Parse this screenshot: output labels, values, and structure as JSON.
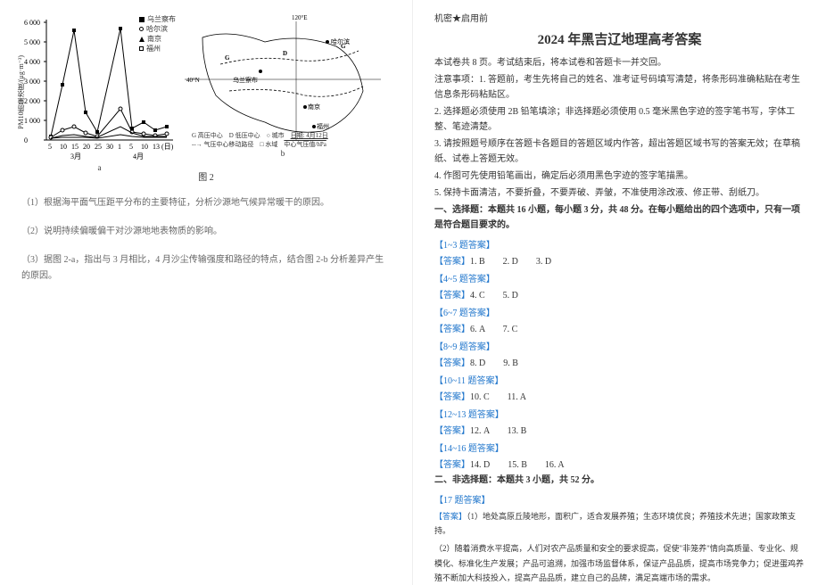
{
  "left": {
    "chart_a": {
      "type": "line",
      "y_label": "PM10质量浓度/(μg·m⁻³)",
      "x_ticks": [
        "5",
        "10",
        "15",
        "20",
        "25",
        "30",
        "1",
        "5",
        "10",
        "13"
      ],
      "x_month_labels": [
        "3月",
        "4月"
      ],
      "y_ticks": [
        "0",
        "1000",
        "2000",
        "3000",
        "4000",
        "5000",
        "6000"
      ],
      "ylim": [
        0,
        6000
      ],
      "legend": [
        {
          "marker": "sq-fill",
          "label": "乌兰察布"
        },
        {
          "marker": "circ",
          "label": "哈尔滨"
        },
        {
          "marker": "tri",
          "label": "南京"
        },
        {
          "marker": "sq-open",
          "label": "福州"
        }
      ],
      "series": {
        "wulan": [
          [
            1,
            200
          ],
          [
            2,
            2800
          ],
          [
            3,
            5600
          ],
          [
            4,
            1400
          ],
          [
            5,
            400
          ],
          [
            6,
            5700
          ],
          [
            7,
            600
          ],
          [
            8,
            900
          ],
          [
            9,
            500
          ],
          [
            10,
            700
          ]
        ],
        "harbin": [
          [
            1,
            150
          ],
          [
            2,
            500
          ],
          [
            3,
            700
          ],
          [
            4,
            350
          ],
          [
            5,
            200
          ],
          [
            6,
            1600
          ],
          [
            7,
            400
          ],
          [
            8,
            300
          ],
          [
            9,
            250
          ],
          [
            10,
            300
          ]
        ],
        "nanjing": [
          [
            1,
            120
          ],
          [
            2,
            250
          ],
          [
            3,
            300
          ],
          [
            4,
            200
          ],
          [
            5,
            150
          ],
          [
            6,
            700
          ],
          [
            7,
            350
          ],
          [
            8,
            200
          ],
          [
            9,
            180
          ],
          [
            10,
            200
          ]
        ],
        "fuzhou": [
          [
            1,
            100
          ],
          [
            2,
            150
          ],
          [
            3,
            180
          ],
          [
            4,
            140
          ],
          [
            5,
            130
          ],
          [
            6,
            300
          ],
          [
            7,
            200
          ],
          [
            8,
            150
          ],
          [
            9,
            140
          ],
          [
            10,
            150
          ]
        ]
      },
      "sub_label": "a"
    },
    "chart_b": {
      "type": "map",
      "lon_label": "120°E",
      "lat_label": "40°N",
      "cities": [
        "哈尔滨",
        "乌兰察布",
        "南京",
        "福州"
      ],
      "legend": [
        {
          "sym": "G",
          "label": "高压中心"
        },
        {
          "sym": "D",
          "label": "低压中心"
        },
        {
          "sym": "arrow",
          "label": "气压中心移动路径"
        },
        {
          "sym": "dot",
          "label": "城市"
        },
        {
          "sym": "sq",
          "label": "水域"
        },
        {
          "sym": "date",
          "label": "日期: 4月12日"
        },
        {
          "sym": "iso",
          "label": "中心气压值/hPa"
        }
      ],
      "sub_label": "b"
    },
    "caption": "图 2",
    "q1": "（1）根据海平面气压距平分布的主要特征，分析沙源地气候异常暖干的原因。",
    "q2": "（2）说明持续偏暖偏干对沙源地地表物质的影响。",
    "q3": "（3）据图 2-a，指出与 3 月相比，4 月沙尘传输强度和路径的特点，结合图 2-b 分析差异产生的原因。"
  },
  "right": {
    "secret": "机密★启用前",
    "title": "2024 年黑吉辽地理高考答案",
    "intro1": "本试卷共 8 页。考试结束后，将本试卷和答题卡一并交回。",
    "intro2": "注意事项：1.  答题前，考生先将自己的姓名、准考证号码填写清楚，将条形码准确粘贴在考生信息条形码粘贴区。",
    "intro3": "2.  选择题必须使用 2B 铅笔填涂；非选择题必须使用 0.5 毫米黑色字迹的签字笔书写，字体工整、笔迹清楚。",
    "intro4": "3.  请按照题号顺序在答题卡各题目的答题区域内作答，超出答题区域书写的答案无效；在草稿纸、试卷上答题无效。",
    "intro5": "4.  作图可先使用铅笔画出，确定后必须用黑色字迹的签字笔描黑。",
    "intro6": "5.  保持卡面清洁，不要折叠，不要弄破、弄皱，不准使用涂改液、修正带、刮纸刀。",
    "sec1": "一、选择题：本题共 16 小题，每小题 3 分，共 48 分。在每小题给出的四个选项中，只有一项是符合题目要求的。",
    "groups": [
      {
        "h": "【1~3 题答案】",
        "a": "【答案】1. B　　2. D　　3. D"
      },
      {
        "h": "【4~5 题答案】",
        "a": "【答案】4. C　　5. D"
      },
      {
        "h": "【6~7 题答案】",
        "a": "【答案】6. A　　7. C"
      },
      {
        "h": "【8~9 题答案】",
        "a": "【答案】8. D　　9. B"
      },
      {
        "h": "【10~11 题答案】",
        "a": "【答案】10. C　　11. A"
      },
      {
        "h": "【12~13 题答案】",
        "a": "【答案】12. A　　13. B"
      },
      {
        "h": "【14~16 题答案】",
        "a": "【答案】14. D　　15. B　　16. A"
      }
    ],
    "sec2": "二、非选择题：本题共 3 小题，共 52 分。",
    "g17h": "【17 题答案】",
    "g17a": "【答案】（1）地处高原丘陵地形，面积广，适合发展养殖；生态环境优良；养殖技术先进；国家政策支持。",
    "g17b": "（2）随着消费水平提高，人们对农产品质量和安全的要求提高，促使\"非笼养\"情向高质量、专业化、规模化、标准化生产发展；产品可追溯，加强市场监督体系，保证产品品质，提高市场竞争力；促进蛋鸡养殖不断加大科技投入，提高产品品质，建立自己的品牌，满足高端市场的需求。"
  }
}
